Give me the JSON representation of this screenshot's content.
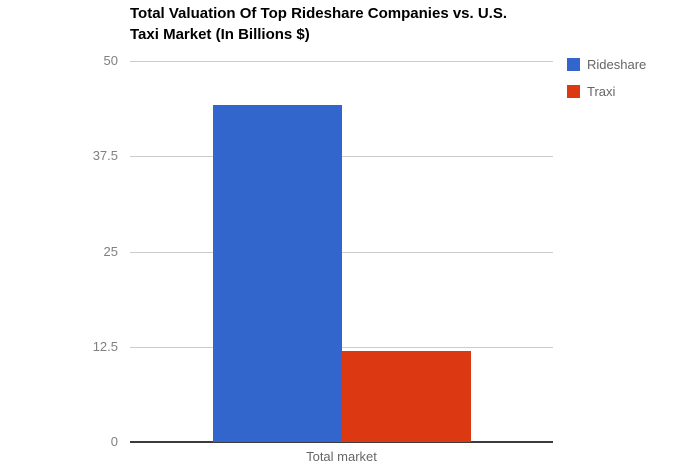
{
  "chart_data": {
    "type": "bar",
    "title": "Total Valuation Of Top Rideshare Companies vs. U.S. Taxi Market (In Billions $)",
    "title_lines": [
      "Total Valuation Of Top Rideshare Companies vs. U.S.",
      "Taxi Market (In Billions $)"
    ],
    "categories": [
      "Total market"
    ],
    "series": [
      {
        "name": "Rideshare",
        "values": [
          44.2
        ],
        "color": "#3366CC"
      },
      {
        "name": "Traxi",
        "values": [
          11.9
        ],
        "color": "#DC3912"
      }
    ],
    "xlabel": "",
    "ylabel": "",
    "ylim": [
      0,
      50
    ],
    "yticks": [
      50,
      37.5,
      25,
      12.5,
      0
    ],
    "grid": true,
    "legend_position": "right",
    "colors": {
      "background": "#ffffff",
      "title_text": "#000000",
      "gridline": "#cccccc",
      "axis_line": "#3c3c3c",
      "tick_label": "#808080",
      "category_label": "#666666",
      "legend_label": "#666666"
    }
  }
}
